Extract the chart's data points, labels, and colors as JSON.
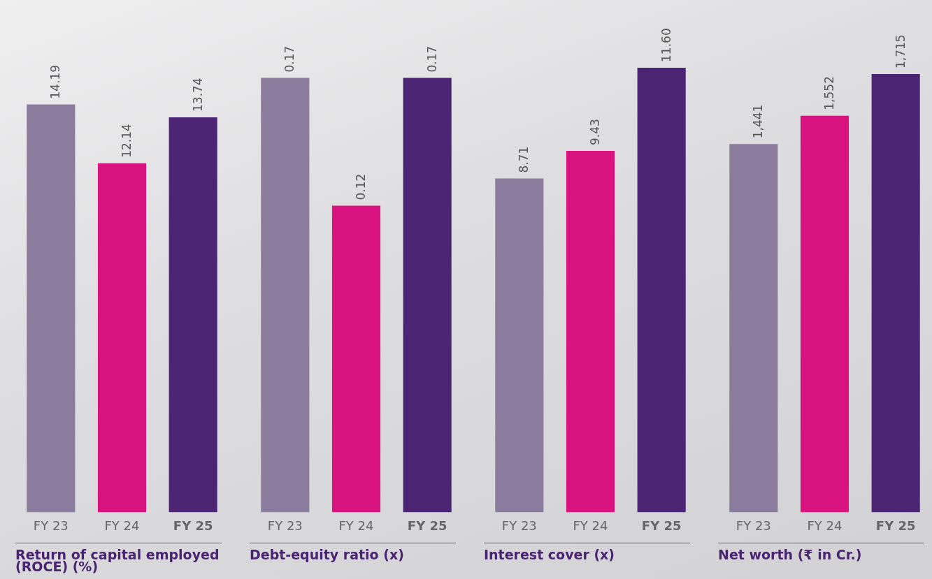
{
  "chart_data": [
    {
      "type": "bar",
      "title": "Return of capital employed (ROCE) (%)",
      "categories": [
        "FY 23",
        "FY 24",
        "FY 25"
      ],
      "values": [
        14.19,
        12.14,
        13.74
      ],
      "colors": [
        "#8b7b9d",
        "#d8127f",
        "#4b2574"
      ],
      "data_labels": true,
      "value_labels": [
        "14.19",
        "12.14",
        "13.74"
      ],
      "legend": false,
      "grid": false,
      "tick_labels": "x"
    },
    {
      "type": "bar",
      "title": "Debt-equity ratio (x)",
      "categories": [
        "FY 23",
        "FY 24",
        "FY 25"
      ],
      "values": [
        0.17,
        0.12,
        0.17
      ],
      "colors": [
        "#8b7b9d",
        "#d8127f",
        "#4b2574"
      ],
      "data_labels": true,
      "value_labels": [
        "0.17",
        "0.12",
        "0.17"
      ],
      "legend": false,
      "grid": false,
      "tick_labels": "x"
    },
    {
      "type": "bar",
      "title": "Interest cover (x)",
      "categories": [
        "FY 23",
        "FY 24",
        "FY 25"
      ],
      "values": [
        8.71,
        9.43,
        11.6
      ],
      "colors": [
        "#8b7b9d",
        "#d8127f",
        "#4b2574"
      ],
      "data_labels": true,
      "value_labels": [
        "8.71",
        "9.43",
        "11.60"
      ],
      "legend": false,
      "grid": false,
      "tick_labels": "x"
    },
    {
      "type": "bar",
      "title": "Net worth (₹ in Cr.)",
      "categories": [
        "FY 23",
        "FY 24",
        "FY 25"
      ],
      "values": [
        1441,
        1552,
        1715
      ],
      "colors": [
        "#8b7b9d",
        "#d8127f",
        "#4b2574"
      ],
      "data_labels": true,
      "value_labels": [
        "1,441",
        "1,552",
        "1,715"
      ],
      "legend": false,
      "grid": false,
      "tick_labels": "x"
    }
  ]
}
